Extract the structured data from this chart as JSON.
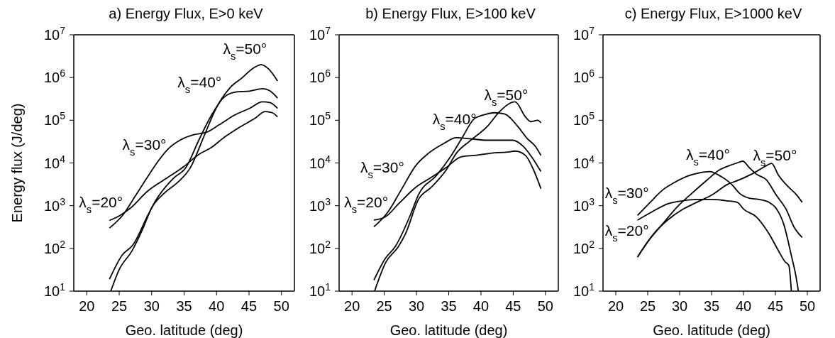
{
  "chart_data": [
    {
      "type": "line",
      "title": "a) Energy Flux, E>0 keV",
      "xlabel": "Geo. latitude (deg)",
      "ylabel": "Energy flux  (J/deg)",
      "log": "y",
      "xlim": [
        18,
        52
      ],
      "xticks": [
        20,
        25,
        30,
        35,
        40,
        45,
        50
      ],
      "ylim": [
        10,
        10000000
      ],
      "yticks": [
        {
          "value": 10,
          "label": "10$^{1}$"
        },
        {
          "value": 100,
          "label": "10$^{2}$"
        },
        {
          "value": 1000,
          "label": "10$^{3}$"
        },
        {
          "value": 10000,
          "label": "10$^{4}$"
        },
        {
          "value": 100000,
          "label": "10$^{5}$"
        },
        {
          "value": 1000000,
          "label": "10$^{6}$"
        },
        {
          "value": 10000000,
          "label": "10$^{7}$"
        }
      ],
      "marker": "none",
      "line_style": "solid",
      "series": [
        {
          "name": "λ$_{s}$=20°",
          "color": "#000000",
          "x": [
            23.5,
            25.1,
            26.7,
            29.4,
            32.2,
            34.9,
            37.3,
            39.2,
            41.2,
            43.5,
            45.9,
            47.5,
            48.6,
            49.4
          ],
          "values": [
            450,
            590,
            870,
            2200,
            4300,
            8100,
            16000,
            23000,
            40000,
            68000,
            110000,
            160000,
            150000,
            120000
          ]
        },
        {
          "name": "λ$_{s}$=30°",
          "color": "#000000",
          "x": [
            23.5,
            25.5,
            27.5,
            29.4,
            31,
            32.5,
            34.5,
            36.5,
            38.4,
            40.4,
            42.7,
            45.1,
            47.1,
            48.2,
            49.4
          ],
          "values": [
            300,
            590,
            1700,
            4800,
            11000,
            21000,
            35000,
            46000,
            52000,
            78000,
            130000,
            190000,
            270000,
            260000,
            190000
          ]
        },
        {
          "name": "λ$_{s}$=40°",
          "color": "#000000",
          "x": [
            23.5,
            25.5,
            27.1,
            29.4,
            30.6,
            33.3,
            35.3,
            37.3,
            39.2,
            41.2,
            43.1,
            45.1,
            47.1,
            48.2,
            49.4
          ],
          "values": [
            19,
            71,
            120,
            590,
            1300,
            4300,
            7900,
            35000,
            130000,
            350000,
            460000,
            480000,
            550000,
            490000,
            330000
          ]
        },
        {
          "name": "λ$_{s}$=50°",
          "color": "#000000",
          "x": [
            23.7,
            25,
            27,
            28.6,
            30,
            32,
            34,
            36,
            38,
            40,
            42,
            44,
            45.5,
            46.9,
            48,
            49.4
          ],
          "values": [
            10,
            32,
            89,
            280,
            890,
            2000,
            3500,
            7900,
            40000,
            200000,
            560000,
            1000000,
            1600000,
            2000000,
            1600000,
            830000
          ]
        }
      ]
    },
    {
      "type": "line",
      "title": "b) Energy Flux, E>100 keV",
      "xlabel": "Geo. latitude (deg)",
      "log": "y",
      "xlim": [
        18,
        52
      ],
      "xticks": [
        20,
        25,
        30,
        35,
        40,
        45,
        50
      ],
      "ylim": [
        10,
        10000000
      ],
      "yticks": [
        {
          "value": 10,
          "label": "10$^{1}$"
        },
        {
          "value": 100,
          "label": "10$^{2}$"
        },
        {
          "value": 1000,
          "label": "10$^{3}$"
        },
        {
          "value": 10000,
          "label": "10$^{4}$"
        },
        {
          "value": 100000,
          "label": "10$^{5}$"
        },
        {
          "value": 1000000,
          "label": "10$^{6}$"
        },
        {
          "value": 10000000,
          "label": "10$^{7}$"
        }
      ],
      "marker": "none",
      "line_style": "solid",
      "series": [
        {
          "name": "λ$_{s}$=20°",
          "color": "#000000",
          "x": [
            23.4,
            25.2,
            27.2,
            29.9,
            32.3,
            34.6,
            37,
            39,
            41.7,
            44.1,
            45.3,
            46.9,
            48,
            49.3
          ],
          "values": [
            460,
            550,
            1100,
            2700,
            4600,
            7800,
            14000,
            15000,
            17000,
            18000,
            19000,
            15000,
            7800,
            2500
          ]
        },
        {
          "name": "λ$_{s}$=30°",
          "color": "#000000",
          "x": [
            23.4,
            25.6,
            27.6,
            29.9,
            31.9,
            34.3,
            36.2,
            38.2,
            41,
            43.3,
            44.9,
            46.5,
            48,
            49.3
          ],
          "values": [
            320,
            720,
            2300,
            8700,
            17000,
            29000,
            39000,
            37000,
            34000,
            34000,
            34000,
            25000,
            13000,
            6300
          ]
        },
        {
          "name": "λ$_{s}$=40°",
          "color": "#000000",
          "x": [
            23.4,
            25.2,
            26.7,
            29.1,
            30.3,
            33.1,
            35.4,
            37,
            39,
            40.2,
            42.1,
            43.7,
            45.7,
            47.2,
            48.4,
            49.3
          ],
          "values": [
            18,
            59,
            110,
            630,
            1800,
            5100,
            15000,
            37000,
            110000,
            130000,
            150000,
            140000,
            72000,
            37000,
            25000,
            15000
          ]
        },
        {
          "name": "λ$_{s}$=50°",
          "color": "#000000",
          "x": [
            23.5,
            25.2,
            27.2,
            28.3,
            30.3,
            32.3,
            34.6,
            36.2,
            38.2,
            41,
            42.9,
            45.3,
            46.9,
            47.7,
            48.8,
            49.3
          ],
          "values": [
            10,
            46,
            110,
            220,
            1400,
            2700,
            6800,
            17000,
            32000,
            72000,
            160000,
            270000,
            120000,
            93000,
            100000,
            87000
          ]
        }
      ]
    },
    {
      "type": "line",
      "title": "c) Energy Flux, E>1000 keV",
      "xlabel": "Geo. latitude (deg)",
      "log": "y",
      "xlim": [
        18,
        52
      ],
      "xticks": [
        20,
        25,
        30,
        35,
        40,
        45,
        50
      ],
      "ylim": [
        10,
        10000000
      ],
      "yticks": [
        {
          "value": 10,
          "label": "10$^{1}$"
        },
        {
          "value": 100,
          "label": "10$^{2}$"
        },
        {
          "value": 1000,
          "label": "10$^{3}$"
        },
        {
          "value": 10000,
          "label": "10$^{4}$"
        },
        {
          "value": 100000,
          "label": "10$^{5}$"
        },
        {
          "value": 1000000,
          "label": "10$^{6}$"
        },
        {
          "value": 10000000,
          "label": "10$^{7}$"
        }
      ],
      "marker": "none",
      "line_style": "solid",
      "series": [
        {
          "name": "λ$_{s}$=20°",
          "color": "#000000",
          "x": [
            23.4,
            25.7,
            28.1,
            30.4,
            32.7,
            35.1,
            37.4,
            39,
            40.1,
            42,
            44,
            45.5,
            46.5,
            47.1,
            47.5
          ],
          "values": [
            460,
            720,
            1100,
            1300,
            1400,
            1400,
            1300,
            1200,
            810,
            550,
            220,
            87,
            49,
            40,
            10
          ]
        },
        {
          "name": "λ$_{s}$=30°",
          "color": "#000000",
          "x": [
            23.4,
            25.4,
            27.3,
            29.2,
            31.2,
            33.1,
            34.7,
            36.2,
            38.2,
            39.3,
            40.9,
            42.4,
            44,
            45.1,
            46.3,
            47.5,
            48.2,
            48.6
          ],
          "values": [
            590,
            1200,
            2300,
            3500,
            4900,
            5900,
            6300,
            5100,
            3100,
            2000,
            1500,
            1400,
            1200,
            870,
            370,
            68,
            23,
            10
          ]
        },
        {
          "name": "λ$_{s}$=40°",
          "color": "#000000",
          "x": [
            23.4,
            25.4,
            27.3,
            29.6,
            32,
            34.3,
            36.2,
            37.8,
            39,
            39.9,
            40.9,
            42,
            43.6,
            45.1,
            46.7,
            47.9,
            49.2
          ],
          "values": [
            63,
            170,
            370,
            930,
            2000,
            4000,
            6800,
            8700,
            10000,
            11000,
            7800,
            5500,
            4000,
            1800,
            810,
            320,
            180
          ]
        },
        {
          "name": "λ$_{s}$=50°",
          "color": "#000000",
          "x": [
            23.4,
            25.7,
            28.1,
            30.4,
            32.7,
            35.1,
            37.4,
            39.3,
            41.3,
            42.4,
            43.6,
            44.4,
            45.5,
            47.1,
            48.3,
            49.2
          ],
          "values": [
            63,
            200,
            460,
            810,
            1200,
            1800,
            3100,
            4000,
            5500,
            6800,
            8700,
            9800,
            5100,
            2700,
            1800,
            1200
          ]
        }
      ]
    }
  ]
}
